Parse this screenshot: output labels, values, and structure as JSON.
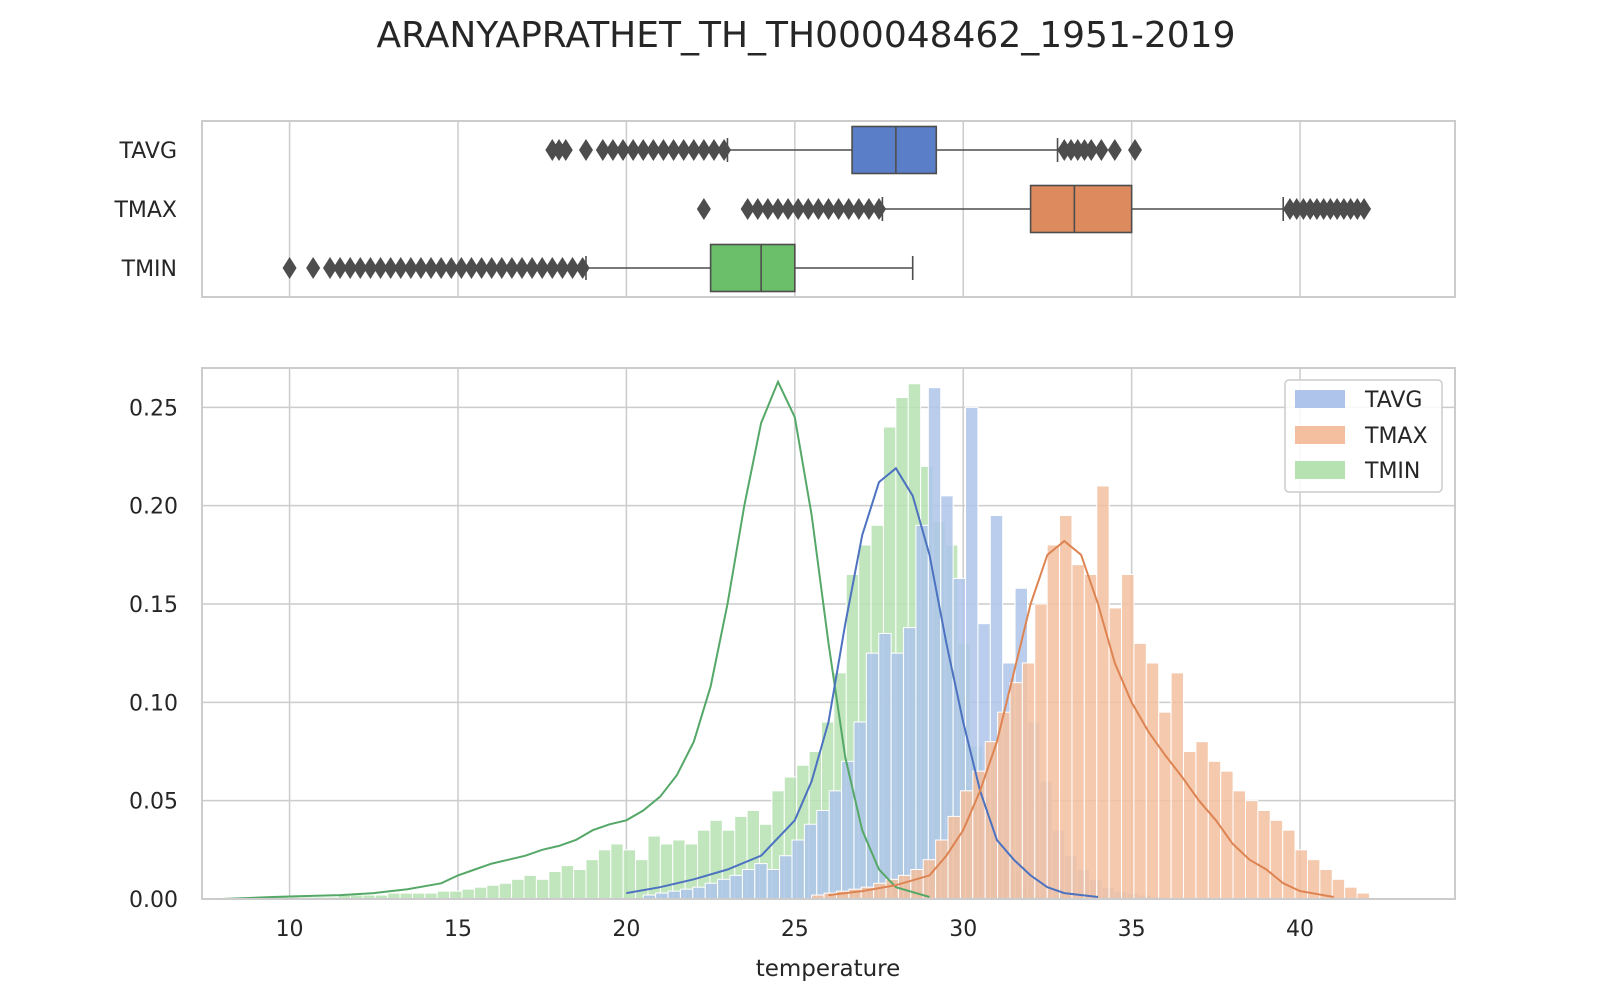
{
  "figure": {
    "title": "ARANYAPRATHET_TH_TH000048462_1951-2019"
  },
  "colors": {
    "TAVG": "#4c72c0",
    "TMAX": "#dd8452",
    "TMIN": "#55a868",
    "TAVG_box": "#5a7ec7",
    "TMAX_box": "#dc8a5e",
    "TMIN_box": "#6bbf6b",
    "TAVG_hist": "#aec4ea",
    "TMAX_hist": "#f3bf9f",
    "TMIN_hist": "#b6e2b2",
    "outlier": "#4d4d4d",
    "grid": "#cccccc",
    "frame": "#cccccc"
  },
  "chart_data": [
    {
      "type": "box",
      "categories": [
        "TAVG",
        "TMAX",
        "TMIN"
      ],
      "xlim": [
        7.4,
        44.6
      ],
      "grid": true,
      "series": [
        {
          "name": "TAVG",
          "q1": 26.7,
          "median": 28.0,
          "q3": 29.2,
          "whisker_low": 23.0,
          "whisker_high": 32.8,
          "outliers": [
            17.8,
            18.0,
            18.2,
            18.8,
            19.3,
            19.6,
            19.9,
            20.2,
            20.5,
            20.8,
            21.1,
            21.4,
            21.7,
            22.0,
            22.3,
            22.6,
            22.9,
            33.0,
            33.2,
            33.4,
            33.6,
            33.8,
            34.1,
            34.5,
            35.1
          ]
        },
        {
          "name": "TMAX",
          "q1": 32.0,
          "median": 33.3,
          "q3": 35.0,
          "whisker_low": 27.6,
          "whisker_high": 39.5,
          "outliers": [
            22.3,
            23.6,
            23.9,
            24.2,
            24.5,
            24.8,
            25.1,
            25.4,
            25.7,
            26.0,
            26.3,
            26.6,
            26.9,
            27.2,
            27.5,
            39.7,
            39.9,
            40.1,
            40.3,
            40.5,
            40.7,
            40.9,
            41.1,
            41.3,
            41.5,
            41.7,
            41.9
          ]
        },
        {
          "name": "TMIN",
          "q1": 22.5,
          "median": 24.0,
          "q3": 25.0,
          "whisker_low": 18.8,
          "whisker_high": 28.5,
          "outliers": [
            10.0,
            10.7,
            11.2,
            11.5,
            11.8,
            12.1,
            12.4,
            12.7,
            13.0,
            13.3,
            13.6,
            13.9,
            14.2,
            14.5,
            14.8,
            15.1,
            15.4,
            15.7,
            16.0,
            16.3,
            16.6,
            16.9,
            17.2,
            17.5,
            17.8,
            18.1,
            18.4,
            18.7
          ]
        }
      ]
    },
    {
      "type": "histogram",
      "xlabel": "temperature",
      "xlim": [
        7.4,
        44.6
      ],
      "ylim": [
        0,
        0.27
      ],
      "xticks": [
        10,
        15,
        20,
        25,
        30,
        35,
        40
      ],
      "yticks": [
        0.0,
        0.05,
        0.1,
        0.15,
        0.2,
        0.25
      ],
      "ytick_labels": [
        "0.00",
        "0.05",
        "0.10",
        "0.15",
        "0.20",
        "0.25"
      ],
      "legend": {
        "position": "top-right",
        "items": [
          "TAVG",
          "TMAX",
          "TMIN"
        ]
      },
      "grid": true,
      "bin_width": 0.368,
      "series": [
        {
          "name": "TAVG",
          "bin_start": 20.5,
          "heights": [
            0.002,
            0.003,
            0.004,
            0.005,
            0.006,
            0.008,
            0.01,
            0.012,
            0.015,
            0.018,
            0.015,
            0.022,
            0.03,
            0.038,
            0.045,
            0.055,
            0.07,
            0.09,
            0.125,
            0.135,
            0.125,
            0.138,
            0.19,
            0.26,
            0.205,
            0.163,
            0.25,
            0.14,
            0.195,
            0.12,
            0.158,
            0.09,
            0.06,
            0.035,
            0.022,
            0.015,
            0.01,
            0.006,
            0.004,
            0.003,
            0.002,
            0.001
          ],
          "kde": [
            [
              20,
              0.003
            ],
            [
              21,
              0.006
            ],
            [
              22,
              0.01
            ],
            [
              23,
              0.015
            ],
            [
              24,
              0.022
            ],
            [
              25,
              0.04
            ],
            [
              25.5,
              0.06
            ],
            [
              26,
              0.09
            ],
            [
              26.5,
              0.14
            ],
            [
              27,
              0.185
            ],
            [
              27.5,
              0.212
            ],
            [
              28,
              0.219
            ],
            [
              28.5,
              0.205
            ],
            [
              29,
              0.175
            ],
            [
              29.5,
              0.13
            ],
            [
              30,
              0.09
            ],
            [
              30.5,
              0.055
            ],
            [
              31,
              0.03
            ],
            [
              31.5,
              0.02
            ],
            [
              32,
              0.012
            ],
            [
              32.5,
              0.006
            ],
            [
              33,
              0.003
            ],
            [
              34,
              0.001
            ]
          ]
        },
        {
          "name": "TMAX",
          "bin_start": 25.5,
          "heights": [
            0.002,
            0.003,
            0.004,
            0.005,
            0.006,
            0.008,
            0.01,
            0.012,
            0.015,
            0.02,
            0.03,
            0.042,
            0.055,
            0.065,
            0.08,
            0.095,
            0.11,
            0.12,
            0.15,
            0.18,
            0.195,
            0.17,
            0.165,
            0.21,
            0.148,
            0.165,
            0.13,
            0.12,
            0.095,
            0.115,
            0.075,
            0.08,
            0.07,
            0.065,
            0.055,
            0.05,
            0.045,
            0.04,
            0.035,
            0.025,
            0.02,
            0.015,
            0.01,
            0.006,
            0.003
          ],
          "kde": [
            [
              26,
              0.002
            ],
            [
              27,
              0.004
            ],
            [
              28,
              0.007
            ],
            [
              29,
              0.012
            ],
            [
              29.5,
              0.022
            ],
            [
              30,
              0.035
            ],
            [
              30.5,
              0.055
            ],
            [
              31,
              0.08
            ],
            [
              31.5,
              0.115
            ],
            [
              32,
              0.15
            ],
            [
              32.5,
              0.175
            ],
            [
              33,
              0.182
            ],
            [
              33.5,
              0.175
            ],
            [
              34,
              0.15
            ],
            [
              34.5,
              0.12
            ],
            [
              35,
              0.1
            ],
            [
              35.5,
              0.085
            ],
            [
              36,
              0.073
            ],
            [
              36.5,
              0.062
            ],
            [
              37,
              0.05
            ],
            [
              37.5,
              0.04
            ],
            [
              38,
              0.028
            ],
            [
              38.5,
              0.02
            ],
            [
              39,
              0.015
            ],
            [
              39.5,
              0.008
            ],
            [
              40,
              0.004
            ],
            [
              41,
              0.001
            ]
          ]
        },
        {
          "name": "TMIN",
          "bin_start": 9.6,
          "heights": [
            0.001,
            0.001,
            0.001,
            0.001,
            0.001,
            0.002,
            0.002,
            0.002,
            0.002,
            0.003,
            0.003,
            0.003,
            0.003,
            0.004,
            0.004,
            0.005,
            0.006,
            0.007,
            0.008,
            0.01,
            0.012,
            0.01,
            0.014,
            0.017,
            0.015,
            0.02,
            0.025,
            0.028,
            0.025,
            0.02,
            0.032,
            0.028,
            0.03,
            0.028,
            0.035,
            0.04,
            0.035,
            0.042,
            0.045,
            0.038,
            0.055,
            0.062,
            0.068,
            0.075,
            0.09,
            0.115,
            0.165,
            0.18,
            0.19,
            0.24,
            0.255,
            0.262,
            0.22,
            0.192,
            0.18,
            0.13,
            0.078,
            0.052,
            0.028,
            0.014,
            0.006,
            0.002
          ],
          "kde": [
            [
              8,
              0.0
            ],
            [
              9.5,
              0.001
            ],
            [
              10.5,
              0.0015
            ],
            [
              11.5,
              0.002
            ],
            [
              12.5,
              0.003
            ],
            [
              13.5,
              0.005
            ],
            [
              14.5,
              0.008
            ],
            [
              15,
              0.012
            ],
            [
              15.5,
              0.015
            ],
            [
              16,
              0.018
            ],
            [
              16.5,
              0.02
            ],
            [
              17,
              0.022
            ],
            [
              17.5,
              0.025
            ],
            [
              18,
              0.027
            ],
            [
              18.5,
              0.03
            ],
            [
              19,
              0.035
            ],
            [
              19.5,
              0.038
            ],
            [
              20,
              0.04
            ],
            [
              20.5,
              0.045
            ],
            [
              21,
              0.052
            ],
            [
              21.5,
              0.063
            ],
            [
              22,
              0.08
            ],
            [
              22.5,
              0.108
            ],
            [
              23,
              0.15
            ],
            [
              23.5,
              0.2
            ],
            [
              24,
              0.242
            ],
            [
              24.5,
              0.263
            ],
            [
              25,
              0.245
            ],
            [
              25.5,
              0.195
            ],
            [
              26,
              0.13
            ],
            [
              26.5,
              0.072
            ],
            [
              27,
              0.035
            ],
            [
              27.5,
              0.015
            ],
            [
              28,
              0.006
            ],
            [
              29,
              0.001
            ]
          ]
        }
      ]
    }
  ]
}
